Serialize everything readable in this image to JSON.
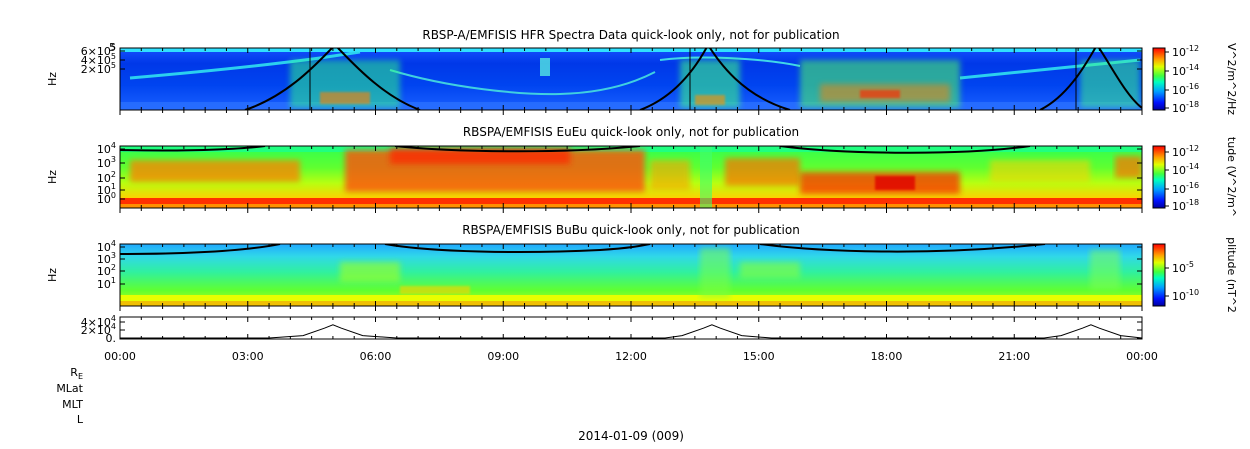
{
  "chart_data": [
    {
      "type": "heatmap",
      "title": "RBSP-A/EMFISIS  HFR Spectra Data quick-look only, not for publication",
      "ylabel": "Hz",
      "yticks": [
        {
          "base": "6",
          "exp": "5"
        },
        {
          "base": "4",
          "exp": "5"
        },
        {
          "base": "2",
          "exp": "5"
        }
      ],
      "ytop_label": "5",
      "colorbar": {
        "label": "V^2/m^2/Hz",
        "ticks": [
          {
            "base": "10",
            "exp": "-12"
          },
          {
            "base": "10",
            "exp": "-14"
          },
          {
            "base": "10",
            "exp": "-16"
          },
          {
            "base": "10",
            "exp": "-18"
          }
        ]
      },
      "overlay": "black plasma-frequency curves peaking near 05:00, 13:50 and 22:50"
    },
    {
      "type": "heatmap",
      "title": "RBSPA/EMFISIS  EuEu quick-look only, not for publication",
      "ylabel": "Hz",
      "yticks": [
        {
          "base": "10",
          "exp": "4"
        },
        {
          "base": "10",
          "exp": "3"
        },
        {
          "base": "10",
          "exp": "2"
        },
        {
          "base": "10",
          "exp": "1"
        },
        {
          "base": "10",
          "exp": "0"
        }
      ],
      "colorbar": {
        "label": "tude (V^2/m^",
        "ticks": [
          {
            "base": "10",
            "exp": "-12"
          },
          {
            "base": "10",
            "exp": "-14"
          },
          {
            "base": "10",
            "exp": "-16"
          },
          {
            "base": "10",
            "exp": "-18"
          }
        ]
      }
    },
    {
      "type": "heatmap",
      "title": "RBSPA/EMFISIS  BuBu quick-look only, not for publication",
      "ylabel": "Hz",
      "yticks": [
        {
          "base": "10",
          "exp": "4"
        },
        {
          "base": "10",
          "exp": "3"
        },
        {
          "base": "10",
          "exp": "2"
        },
        {
          "base": "10",
          "exp": "1"
        }
      ],
      "colorbar": {
        "label": "plitude (nT^2",
        "ticks": [
          {
            "base": "10",
            "exp": "-5"
          },
          {
            "base": "10",
            "exp": "-10"
          }
        ]
      }
    },
    {
      "type": "line",
      "yticks": [
        {
          "base": "4",
          "exp": "4",
          "prefix": ""
        },
        {
          "base": "2",
          "exp": "4",
          "prefix": ""
        },
        {
          "base": "0.",
          "exp": "",
          "prefix": ""
        }
      ],
      "ylim": [
        0,
        45000
      ],
      "x_hours": [
        0,
        3.5,
        4.3,
        4.8,
        5.0,
        5.2,
        5.7,
        6.5,
        12.8,
        13.2,
        13.7,
        13.9,
        14.1,
        14.6,
        15.3,
        21.7,
        22.1,
        22.6,
        22.8,
        23.0,
        23.5,
        24.0
      ],
      "y": [
        2000,
        2000,
        7000,
        22000,
        29000,
        22000,
        7000,
        2000,
        2000,
        7000,
        22000,
        29000,
        22000,
        7000,
        2000,
        2000,
        7000,
        22000,
        29000,
        22000,
        7000,
        2000
      ]
    }
  ],
  "x_axis": {
    "tick_labels": [
      "00:00",
      "03:00",
      "06:00",
      "09:00",
      "12:00",
      "15:00",
      "18:00",
      "21:00",
      "00:00"
    ],
    "tick_hours": [
      0,
      3,
      6,
      9,
      12,
      15,
      18,
      21,
      24
    ]
  },
  "ephemeris_labels": {
    "re_base": "R",
    "re_sub": "E",
    "mlat": "MLat",
    "mlt": "MLT",
    "l": "L"
  },
  "date_label": "2014-01-09 (009)"
}
